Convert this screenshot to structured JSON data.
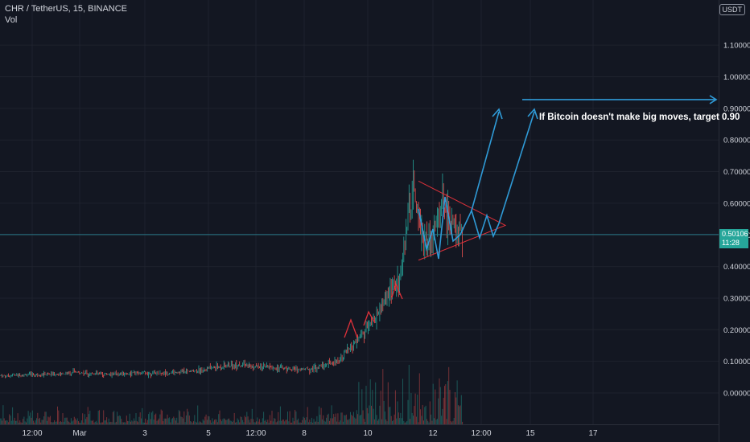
{
  "header": {
    "symbol": "CHR / TetherUS, 15, BINANCE",
    "indicator": "Vol"
  },
  "currency": "USDT",
  "last_price": {
    "value": "0.50106",
    "countdown": "11:28"
  },
  "annotation": "If Bitcoin doesn't make big moves, target 0.90",
  "colors": {
    "background": "#131722",
    "grid": "#1e222d",
    "up": "#26a69a",
    "down": "#ef5350",
    "drawing_blue": "#2f9ad6",
    "drawing_red": "#e0313a",
    "price_line": "#2a7a8a"
  },
  "chart_data": {
    "type": "candlestick",
    "title": "CHR / TetherUS, 15, BINANCE",
    "y_axis": {
      "ticks": [
        "1.10000",
        "1.00000",
        "0.90000",
        "0.80000",
        "0.70000",
        "0.60000",
        "0.50000",
        "0.40000",
        "0.30000",
        "0.20000",
        "0.10000",
        "0.00000"
      ],
      "tick_values": [
        1.1,
        1.0,
        0.9,
        0.8,
        0.7,
        0.6,
        0.5,
        0.4,
        0.3,
        0.2,
        0.1,
        0.0
      ],
      "range": [
        -0.02,
        1.15
      ]
    },
    "x_axis": {
      "ticks": [
        "12:00",
        "Mar",
        "3",
        "5",
        "12:00",
        "8",
        "10",
        "12",
        "12:00",
        "15",
        "17"
      ]
    },
    "price_path": [
      [
        0,
        0.055
      ],
      [
        0.04,
        0.058
      ],
      [
        0.08,
        0.06
      ],
      [
        0.1,
        0.065
      ],
      [
        0.14,
        0.06
      ],
      [
        0.18,
        0.062
      ],
      [
        0.22,
        0.063
      ],
      [
        0.26,
        0.07
      ],
      [
        0.3,
        0.085
      ],
      [
        0.32,
        0.09
      ],
      [
        0.34,
        0.082
      ],
      [
        0.37,
        0.08
      ],
      [
        0.4,
        0.075
      ],
      [
        0.42,
        0.078
      ],
      [
        0.45,
        0.1
      ],
      [
        0.47,
        0.14
      ],
      [
        0.49,
        0.2
      ],
      [
        0.51,
        0.26
      ],
      [
        0.52,
        0.32
      ],
      [
        0.535,
        0.36
      ],
      [
        0.548,
        0.58
      ],
      [
        0.555,
        0.62
      ],
      [
        0.565,
        0.5
      ],
      [
        0.575,
        0.48
      ],
      [
        0.585,
        0.55
      ],
      [
        0.595,
        0.6
      ],
      [
        0.605,
        0.52
      ],
      [
        0.62,
        0.5
      ]
    ],
    "drawings": {
      "triangle_apex_price": 0.53,
      "triangle_top_price": 0.67,
      "triangle_bottom_price": 0.42,
      "target_price": 0.91
    }
  }
}
